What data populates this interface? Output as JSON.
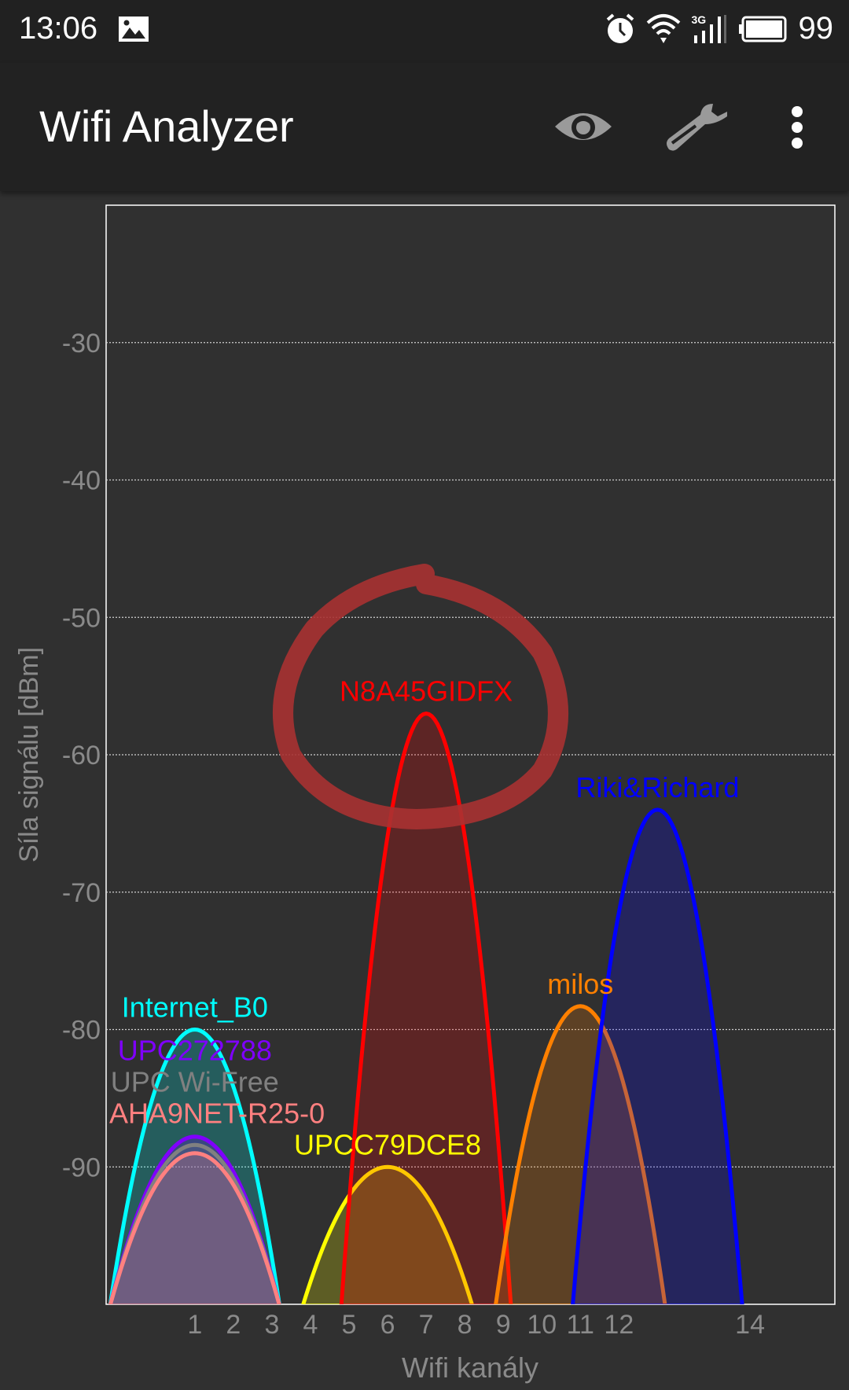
{
  "status_bar": {
    "time": "13:06",
    "battery": "99",
    "network": "3G",
    "icons": [
      "image-icon",
      "alarm-icon",
      "wifi-icon",
      "signal-icon",
      "battery-icon"
    ]
  },
  "app_bar": {
    "title": "Wifi Analyzer",
    "actions": [
      "eye-icon",
      "wrench-icon",
      "more-vert-icon"
    ]
  },
  "colors": {
    "background": "#303030",
    "axis_text": "#8a8a8a",
    "annotation_circle": "#a83232"
  },
  "chart_data": {
    "type": "area",
    "title": "",
    "xlabel": "Wifi kanály",
    "ylabel": "Síla signálu [dBm]",
    "ylim": [
      -100,
      -20
    ],
    "xlim_mhz": [
      2400.5,
      2495
    ],
    "grid": true,
    "y_ticks": [
      -30,
      -40,
      -50,
      -60,
      -70,
      -80,
      -90
    ],
    "x_ticks": [
      {
        "label": "1",
        "mhz": 2412
      },
      {
        "label": "2",
        "mhz": 2417
      },
      {
        "label": "3",
        "mhz": 2422
      },
      {
        "label": "4",
        "mhz": 2427
      },
      {
        "label": "5",
        "mhz": 2432
      },
      {
        "label": "6",
        "mhz": 2437
      },
      {
        "label": "7",
        "mhz": 2442
      },
      {
        "label": "8",
        "mhz": 2447
      },
      {
        "label": "9",
        "mhz": 2452
      },
      {
        "label": "10",
        "mhz": 2457
      },
      {
        "label": "11",
        "mhz": 2462
      },
      {
        "label": "12",
        "mhz": 2467
      },
      {
        "label": "14",
        "mhz": 2484
      }
    ],
    "series": [
      {
        "name": "Internet_B0",
        "channel": 1,
        "dbm": -80,
        "color": "#00ffff"
      },
      {
        "name": "UPC272788",
        "channel": 1,
        "dbm": -87.8,
        "color": "#7f00ff"
      },
      {
        "name": "UPC Wi-Free",
        "channel": 1,
        "dbm": -88.4,
        "color": "#808080"
      },
      {
        "name": "AHA9NET-R25-0",
        "channel": 1,
        "dbm": -89,
        "color": "#ff8080"
      },
      {
        "name": "UPCC79DCE8",
        "channel": 6,
        "dbm": -90,
        "color": "#ffff00"
      },
      {
        "name": "N8A45GIDFX",
        "channel": 7,
        "dbm": -57,
        "color": "#ff0000"
      },
      {
        "name": "milos",
        "channel": 11,
        "dbm": -78.3,
        "color": "#ff8000"
      },
      {
        "name": "Riki&Richard",
        "channel": 13,
        "dbm": -64,
        "color": "#0000ff"
      }
    ]
  }
}
